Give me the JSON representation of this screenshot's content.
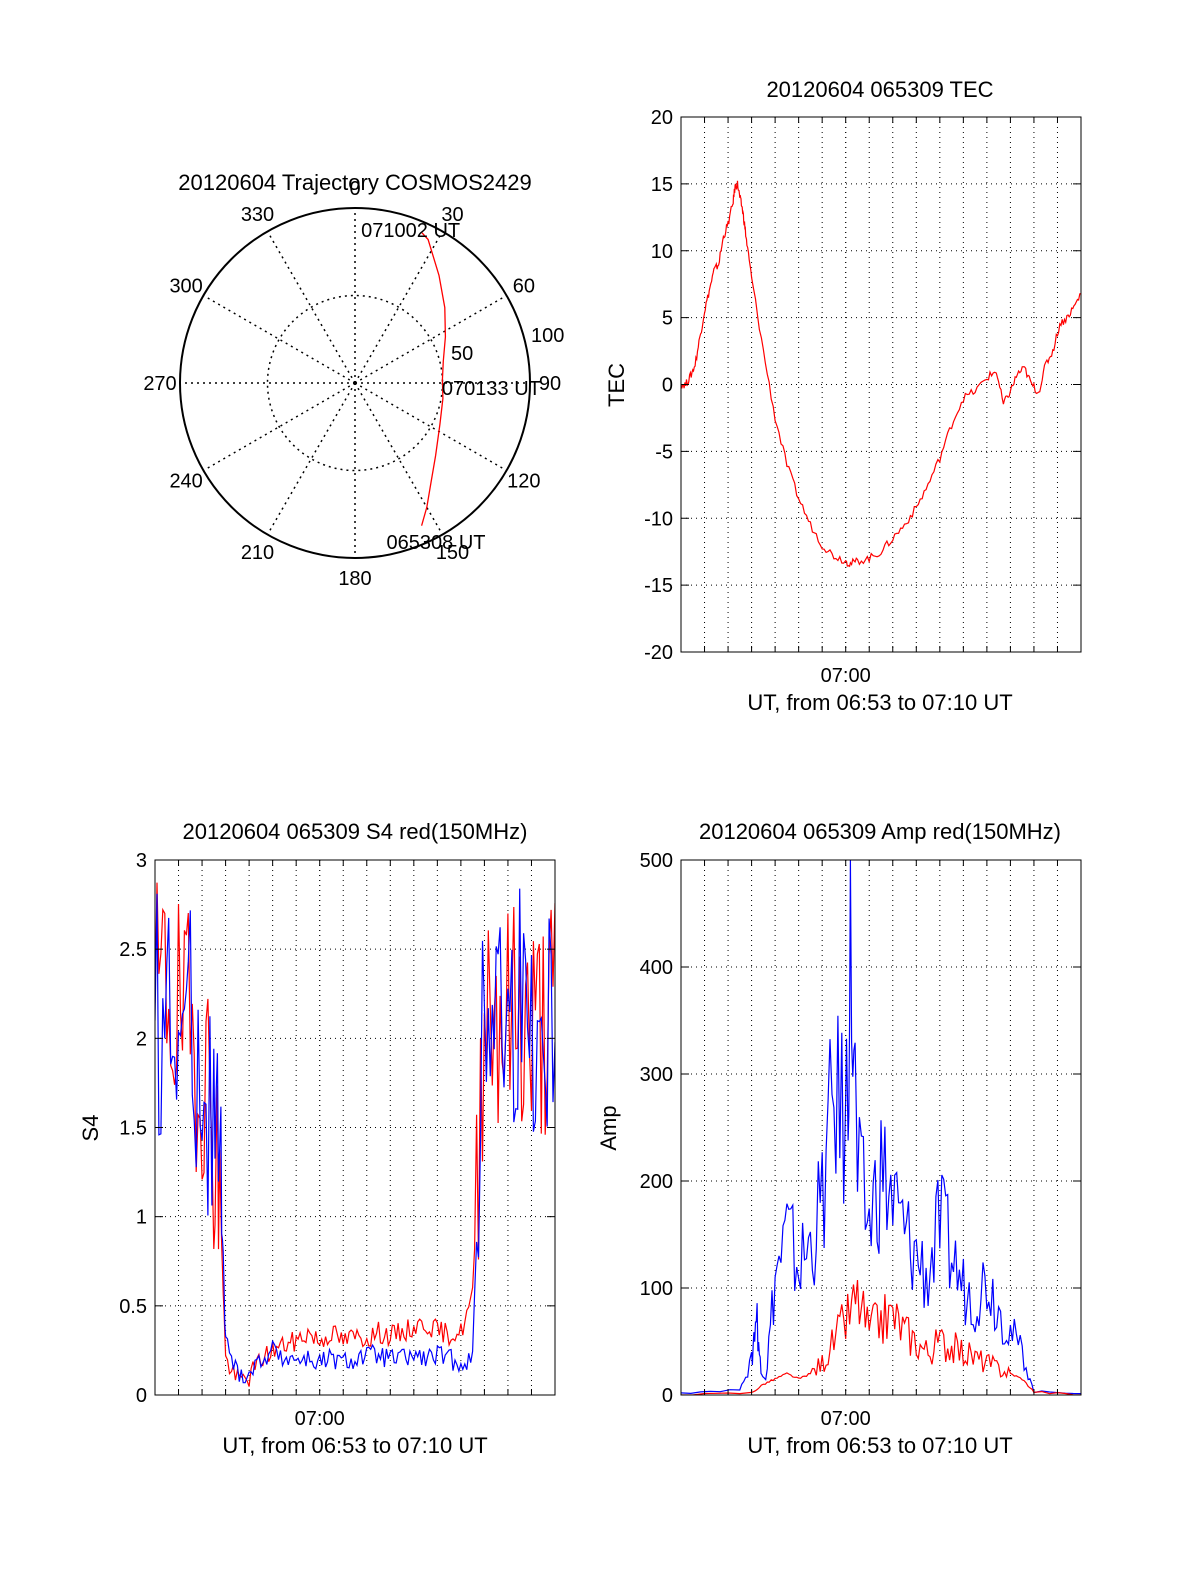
{
  "chart_data": [
    {
      "type": "polar",
      "title": "20120604 Trajectory COSMOS2429",
      "angle_ticks": [
        "0",
        "30",
        "60",
        "90",
        "120",
        "150",
        "180",
        "210",
        "240",
        "270",
        "300",
        "330"
      ],
      "angle_values": [
        0,
        30,
        60,
        90,
        120,
        150,
        180,
        210,
        240,
        270,
        300,
        330
      ],
      "radius_ticks": [
        "50",
        "100"
      ],
      "radius_values": [
        50,
        100
      ],
      "rlim": [
        0,
        100
      ],
      "grid": true,
      "colors": {
        "trajectory": "#ff0000",
        "grid": "#000000"
      },
      "trajectory": {
        "azimuth": [
          155,
          150,
          143,
          132,
          116,
          100,
          88,
          76,
          63,
          50,
          38,
          27,
          24
        ],
        "zenith": [
          90,
          82,
          72,
          62,
          54,
          51,
          50,
          52,
          58,
          67,
          78,
          92,
          94
        ]
      },
      "annotations": [
        {
          "text": "065308 UT",
          "azimuth": 153,
          "zenith": 102
        },
        {
          "text": "070133 UT",
          "azimuth": 92,
          "zenith": 78
        },
        {
          "text": "071002 UT",
          "azimuth": 20,
          "zenith": 93
        }
      ]
    },
    {
      "type": "line",
      "title": "20120604 065309 TEC",
      "xlabel": "UT, from 06:53 to 07:10 UT",
      "ylabel": "TEC",
      "xlim": [
        0,
        17
      ],
      "ylim": [
        -20,
        20
      ],
      "x_ticks": [
        {
          "x": 7,
          "label": "07:00"
        }
      ],
      "y_ticks": [
        "-20",
        "-15",
        "-10",
        "-5",
        "0",
        "5",
        "10",
        "15",
        "20"
      ],
      "y_tick_values": [
        -20,
        -15,
        -10,
        -5,
        0,
        5,
        10,
        15,
        20
      ],
      "grid": true,
      "series": [
        {
          "color": "#ff0000",
          "x": [
            0,
            0.2,
            0.4,
            0.6,
            0.8,
            1.0,
            1.2,
            1.4,
            1.6,
            1.8,
            2.0,
            2.2,
            2.3,
            2.4,
            2.5,
            2.6,
            2.7,
            2.8,
            3.0,
            3.5,
            4.0,
            4.5,
            5.0,
            5.5,
            6.0,
            6.5,
            7.0,
            7.2,
            7.5,
            8.0,
            8.5,
            9.0,
            9.5,
            10.0,
            10.5,
            11.0,
            11.5,
            12.0,
            12.5,
            13.0,
            13.4,
            13.7,
            14.0,
            14.3,
            14.6,
            14.9,
            15.2,
            15.5,
            15.8,
            16.1,
            16.4,
            16.7,
            17.0
          ],
          "y": [
            0.0,
            0.0,
            0.6,
            1.5,
            3.5,
            5.5,
            7.0,
            8.5,
            9.0,
            11.0,
            12.0,
            13.5,
            14.8,
            15.0,
            14.0,
            13.2,
            12.0,
            10.5,
            8.0,
            2.5,
            -2.5,
            -6.0,
            -8.5,
            -10.5,
            -12.0,
            -12.8,
            -13.2,
            -13.4,
            -13.2,
            -13.0,
            -12.5,
            -11.5,
            -10.5,
            -9.2,
            -7.5,
            -5.5,
            -3.0,
            -1.0,
            -0.5,
            0.5,
            1.0,
            -1.5,
            -0.5,
            0.8,
            1.2,
            0.0,
            -0.6,
            1.5,
            2.5,
            4.5,
            5.0,
            5.8,
            6.8
          ]
        }
      ]
    },
    {
      "type": "line",
      "title": "20120604 065309 S4 red(150MHz)",
      "xlabel": "UT, from 06:53 to 07:10 UT",
      "ylabel": "S4",
      "xlim": [
        0,
        17
      ],
      "ylim": [
        0,
        3
      ],
      "x_ticks": [
        {
          "x": 7,
          "label": "07:00"
        }
      ],
      "y_ticks": [
        "0",
        "0.5",
        "1",
        "1.5",
        "2",
        "2.5",
        "3"
      ],
      "y_tick_values": [
        0,
        0.5,
        1,
        1.5,
        2,
        2.5,
        3
      ],
      "grid": true,
      "series": [
        {
          "color": "#ff0000",
          "x": [
            0,
            0.5,
            1.0,
            1.5,
            2.0,
            2.5,
            2.8,
            3.0,
            3.5,
            4.0,
            4.5,
            5.0,
            5.5,
            6.0,
            6.5,
            7.0,
            7.5,
            8.0,
            8.5,
            9.0,
            9.5,
            10.0,
            10.5,
            11.0,
            11.5,
            12.0,
            12.5,
            13.0,
            13.5,
            14.0,
            14.5,
            15.0,
            15.5,
            16.0,
            16.5,
            17.0
          ],
          "y": [
            2.2,
            2.3,
            2.1,
            2.0,
            1.9,
            1.5,
            1.0,
            0.2,
            0.08,
            0.1,
            0.2,
            0.25,
            0.28,
            0.3,
            0.35,
            0.3,
            0.35,
            0.3,
            0.33,
            0.32,
            0.35,
            0.33,
            0.35,
            0.38,
            0.4,
            0.36,
            0.34,
            0.35,
            0.55,
            2.3,
            2.2,
            2.1,
            2.2,
            2.0,
            2.1,
            2.2
          ]
        },
        {
          "color": "#0000ff",
          "x": [
            0,
            0.5,
            1.0,
            1.5,
            2.0,
            2.5,
            2.8,
            3.0,
            3.5,
            4.0,
            4.5,
            5.0,
            5.5,
            6.0,
            6.5,
            7.0,
            7.5,
            8.0,
            8.5,
            9.0,
            9.5,
            10.0,
            10.5,
            11.0,
            11.5,
            12.0,
            12.5,
            13.0,
            13.5,
            14.0,
            14.5,
            15.0,
            15.5,
            16.0,
            16.5,
            17.0
          ],
          "y": [
            2.1,
            2.2,
            2.0,
            2.1,
            1.8,
            1.6,
            1.2,
            0.3,
            0.12,
            0.12,
            0.2,
            0.25,
            0.22,
            0.2,
            0.2,
            0.18,
            0.2,
            0.18,
            0.2,
            0.22,
            0.22,
            0.2,
            0.2,
            0.22,
            0.2,
            0.22,
            0.2,
            0.18,
            0.2,
            2.2,
            2.3,
            2.0,
            2.2,
            2.1,
            2.0,
            2.2
          ]
        }
      ]
    },
    {
      "type": "line",
      "title": "20120604 065309 Amp red(150MHz)",
      "xlabel": "UT, from 06:53 to 07:10 UT",
      "ylabel": "Amp",
      "xlim": [
        0,
        17
      ],
      "ylim": [
        0,
        500
      ],
      "x_ticks": [
        {
          "x": 7,
          "label": "07:00"
        }
      ],
      "y_ticks": [
        "0",
        "100",
        "200",
        "300",
        "400",
        "500"
      ],
      "y_tick_values": [
        0,
        100,
        200,
        300,
        400,
        500
      ],
      "grid": true,
      "series": [
        {
          "color": "#0000ff",
          "x": [
            0,
            2.5,
            3.0,
            3.2,
            3.4,
            3.6,
            4.0,
            4.5,
            5.0,
            5.5,
            6.0,
            6.5,
            7.0,
            7.2,
            7.5,
            8.0,
            8.5,
            9.0,
            9.5,
            10.0,
            10.5,
            11.0,
            11.5,
            12.0,
            12.5,
            13.0,
            13.5,
            14.0,
            14.5,
            15.0,
            17.0
          ],
          "y": [
            2,
            5,
            30,
            80,
            20,
            15,
            110,
            150,
            120,
            140,
            180,
            280,
            250,
            430,
            200,
            160,
            210,
            180,
            150,
            130,
            110,
            160,
            130,
            100,
            90,
            110,
            80,
            60,
            40,
            3,
            2
          ]
        },
        {
          "color": "#ff0000",
          "x": [
            0,
            3.0,
            3.5,
            4.0,
            4.5,
            5.0,
            5.5,
            6.0,
            6.5,
            7.0,
            7.5,
            8.0,
            8.5,
            9.0,
            9.5,
            10.0,
            10.5,
            11.0,
            11.5,
            12.0,
            12.5,
            13.0,
            13.5,
            14.0,
            14.5,
            15.0,
            17.0
          ],
          "y": [
            0,
            2,
            10,
            15,
            20,
            15,
            20,
            30,
            50,
            70,
            90,
            60,
            70,
            75,
            60,
            50,
            40,
            50,
            45,
            40,
            35,
            30,
            25,
            20,
            15,
            3,
            0
          ]
        }
      ]
    }
  ]
}
